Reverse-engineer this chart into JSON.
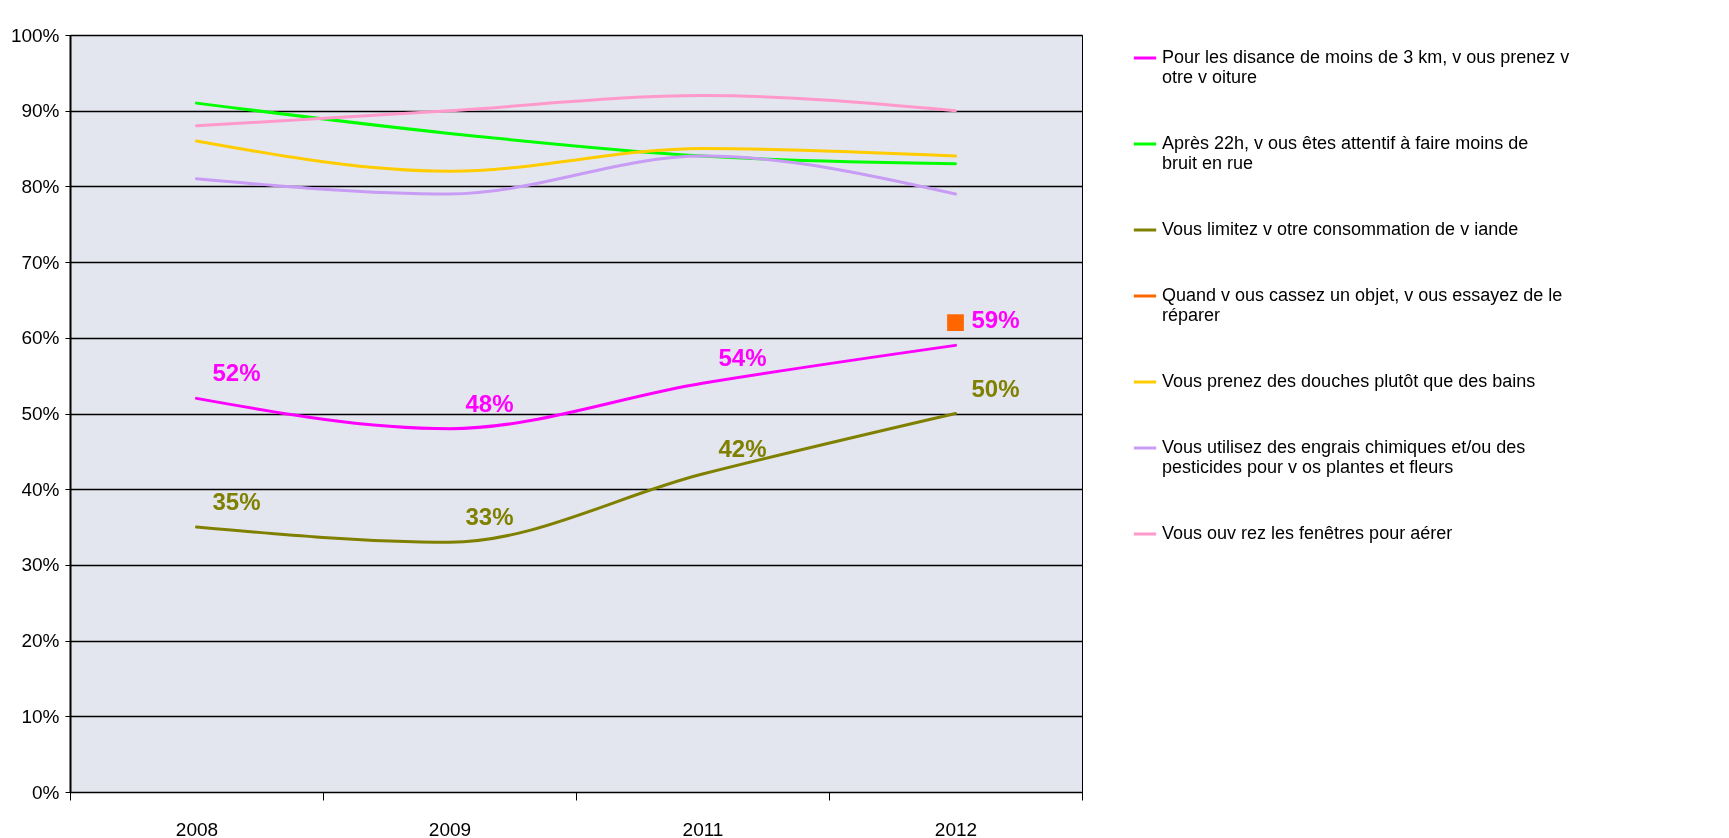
{
  "chart_data": {
    "type": "line",
    "categories": [
      "2008",
      "2009",
      "2011",
      "2012"
    ],
    "ylim": [
      0,
      100
    ],
    "yticks": [
      {
        "value": 0,
        "label": "0%"
      },
      {
        "value": 10,
        "label": "10%"
      },
      {
        "value": 20,
        "label": "20%"
      },
      {
        "value": 30,
        "label": "30%"
      },
      {
        "value": 40,
        "label": "40%"
      },
      {
        "value": 50,
        "label": "50%"
      },
      {
        "value": 60,
        "label": "60%"
      },
      {
        "value": 70,
        "label": "70%"
      },
      {
        "value": 80,
        "label": "80%"
      },
      {
        "value": 90,
        "label": "90%"
      },
      {
        "value": 100,
        "label": "100%"
      }
    ],
    "grid": "y",
    "legend": "right",
    "marker": "none",
    "series": [
      {
        "name": "Pour les disance de moins de 3 km, v ous prenez v otre v oiture",
        "color": "#ff00ff",
        "values": [
          52,
          48,
          54,
          59
        ],
        "value_labels": [
          "52%",
          "48%",
          "54%",
          "59%"
        ]
      },
      {
        "name": "Après 22h, v ous êtes attentif à faire moins de bruit en rue",
        "color": "#00ff00",
        "values": [
          91,
          87,
          84,
          83
        ]
      },
      {
        "name": "Vous limitez v otre consommation de v iande",
        "color": "#808000",
        "values": [
          35,
          33,
          42,
          50
        ],
        "value_labels": [
          "35%",
          "33%",
          "42%",
          "50%"
        ]
      },
      {
        "name": "Quand v ous cassez un objet, v ous essayez de le réparer",
        "color": "#ff6600",
        "values": [
          null,
          null,
          null,
          62
        ],
        "marker": "square"
      },
      {
        "name": "Vous prenez des douches plutôt que des bains",
        "color": "#ffcc00",
        "values": [
          86,
          82,
          85,
          84
        ]
      },
      {
        "name": "Vous utilisez des engrais chimiques et/ou des pesticides pour v os plantes et fleurs",
        "color": "#c89bf5",
        "values": [
          81,
          79,
          84,
          79
        ]
      },
      {
        "name": "Vous ouv rez les fenêtres pour aérer",
        "color": "#ff99cc",
        "values": [
          88,
          90,
          92,
          90
        ]
      }
    ]
  }
}
